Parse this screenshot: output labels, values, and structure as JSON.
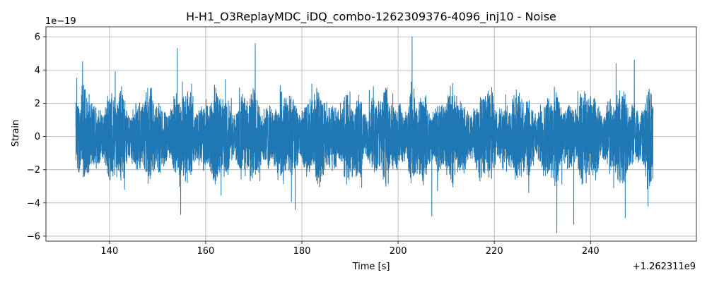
{
  "chart_data": {
    "type": "line",
    "title": "H-H1_O3ReplayMDC_iDQ_combo-1262309376-4096_inj10 - Noise",
    "xlabel": "Time [s]",
    "ylabel": "Strain",
    "x_offset_label": "+1.262311e9",
    "y_scale_label": "1e−19",
    "xlim": [
      126.8,
      262.0
    ],
    "ylim": [
      -6.3,
      6.6
    ],
    "x_ticks": [
      140,
      160,
      180,
      200,
      220,
      240
    ],
    "x_tick_labels": [
      "140",
      "160",
      "180",
      "200",
      "220",
      "240"
    ],
    "y_ticks": [
      -6,
      -4,
      -2,
      0,
      2,
      4,
      6
    ],
    "y_tick_labels": [
      "−6",
      "−4",
      "−2",
      "0",
      "2",
      "4",
      "6"
    ],
    "grid": true,
    "series_color": "#1f77b4",
    "x_range_data": [
      133.0,
      253.0
    ],
    "envelope_approx": {
      "typical_amplitude": 2.0,
      "notable_peaks": [
        {
          "x": 133.2,
          "y": 3.5
        },
        {
          "x": 134.4,
          "y": 4.5
        },
        {
          "x": 141.2,
          "y": 3.9
        },
        {
          "x": 154.1,
          "y": 5.3
        },
        {
          "x": 154.8,
          "y": -4.7
        },
        {
          "x": 170.3,
          "y": 5.6
        },
        {
          "x": 178.6,
          "y": -4.4
        },
        {
          "x": 202.9,
          "y": 6.0
        },
        {
          "x": 207.0,
          "y": -4.8
        },
        {
          "x": 233.0,
          "y": -5.8
        },
        {
          "x": 236.5,
          "y": -5.3
        },
        {
          "x": 245.3,
          "y": 4.4
        },
        {
          "x": 247.2,
          "y": -4.9
        },
        {
          "x": 249.1,
          "y": 4.6
        }
      ]
    }
  }
}
